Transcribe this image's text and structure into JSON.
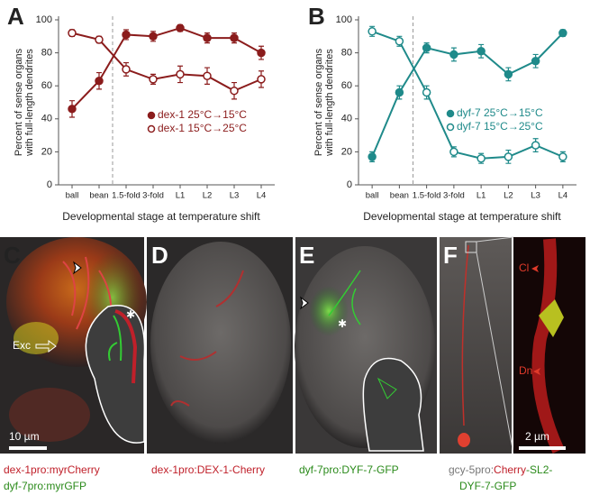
{
  "chart_data": [
    {
      "type": "line",
      "title": "A",
      "categories": [
        "ball",
        "bean",
        "1.5-fold",
        "3-fold",
        "L1",
        "L2",
        "L3",
        "L4"
      ],
      "ylabel": [
        "Percent of sense organs",
        "with full-length dendrites"
      ],
      "xlabel": "Developmental stage at temperature shift",
      "ylim": [
        0,
        100
      ],
      "yticks": [
        0,
        20,
        40,
        60,
        80,
        100
      ],
      "series": [
        {
          "name": "dex-1 25°C→15°C",
          "color": "#8b1c1c",
          "marker": "filled",
          "values": [
            46,
            63,
            91,
            90,
            95,
            89,
            89,
            80
          ],
          "errors": [
            5,
            5,
            3,
            3,
            2,
            3,
            3,
            4
          ]
        },
        {
          "name": "dex-1 15°C→25°C",
          "color": "#8b1c1c",
          "marker": "open",
          "values": [
            92,
            88,
            70,
            64,
            67,
            66,
            57,
            64
          ],
          "errors": [
            2,
            2,
            4,
            3,
            5,
            5,
            5,
            5
          ]
        }
      ]
    },
    {
      "type": "line",
      "title": "B",
      "categories": [
        "ball",
        "bean",
        "1.5-fold",
        "3-fold",
        "L1",
        "L2",
        "L3",
        "L4"
      ],
      "ylabel": [
        "Percent of sense organs",
        "with full-length dendrites"
      ],
      "xlabel": "Developmental stage at temperature shift",
      "ylim": [
        0,
        100
      ],
      "yticks": [
        0,
        20,
        40,
        60,
        80,
        100
      ],
      "series": [
        {
          "name": "dyf-7 25°C→15°C",
          "color": "#1f8a8a",
          "marker": "filled",
          "values": [
            17,
            56,
            83,
            79,
            81,
            67,
            75,
            92
          ],
          "errors": [
            3,
            4,
            3,
            4,
            4,
            4,
            4,
            2
          ]
        },
        {
          "name": "dyf-7 15°C→25°C",
          "color": "#1f8a8a",
          "marker": "open",
          "values": [
            93,
            87,
            56,
            20,
            16,
            17,
            24,
            17
          ],
          "errors": [
            3,
            3,
            4,
            3,
            3,
            4,
            4,
            3
          ]
        }
      ]
    }
  ],
  "images": [
    {
      "label": "C",
      "annotations": [
        "Exc",
        "10 µm"
      ],
      "caption": [
        "dex-1pro:myrCherry",
        "dyf-7pro:myrGFP"
      ]
    },
    {
      "label": "D",
      "caption": [
        "dex-1pro:DEX-1-Cherry"
      ]
    },
    {
      "label": "E",
      "caption": [
        "dyf-7pro:DYF-7-GFP"
      ]
    },
    {
      "label": "F",
      "annotations": [
        "Cl",
        "Dn",
        "2 µm"
      ],
      "caption": [
        "gcy-5pro:",
        "Cherry",
        "-SL2-",
        "DYF-7-GFP"
      ]
    }
  ]
}
